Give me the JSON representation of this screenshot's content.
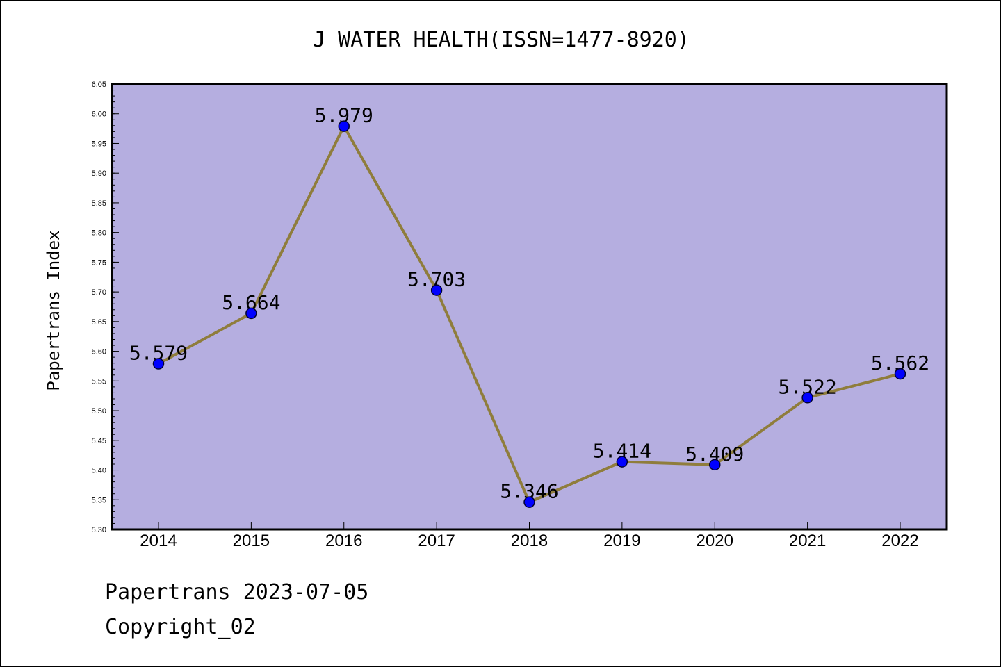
{
  "chart_data": {
    "type": "line",
    "title": "J WATER HEALTH(ISSN=1477-8920)",
    "xlabel": "",
    "ylabel": "Papertrans Index",
    "categories": [
      "2014",
      "2015",
      "2016",
      "2017",
      "2018",
      "2019",
      "2020",
      "2021",
      "2022"
    ],
    "series": [
      {
        "values": [
          5.579,
          5.664,
          5.979,
          5.703,
          5.346,
          5.414,
          5.409,
          5.522,
          5.562
        ]
      }
    ],
    "data_labels": [
      "5.579",
      "5.664",
      "5.979",
      "5.703",
      "5.346",
      "5.414",
      "5.409",
      "5.522",
      "5.562"
    ],
    "yticks": [
      "5.30",
      "5.35",
      "5.40",
      "5.45",
      "5.50",
      "5.55",
      "5.60",
      "5.65",
      "5.70",
      "5.75",
      "5.80",
      "5.85",
      "5.90",
      "5.95",
      "6.00",
      "6.05"
    ],
    "ylim": [
      5.3,
      6.05
    ],
    "grid": false,
    "colors": {
      "plot_background": "#b5aee0",
      "line": "#8f7d3c",
      "marker": "#0000ff"
    }
  },
  "footer": {
    "line1": "Papertrans 2023-07-05",
    "line2": "Copyright_02"
  }
}
